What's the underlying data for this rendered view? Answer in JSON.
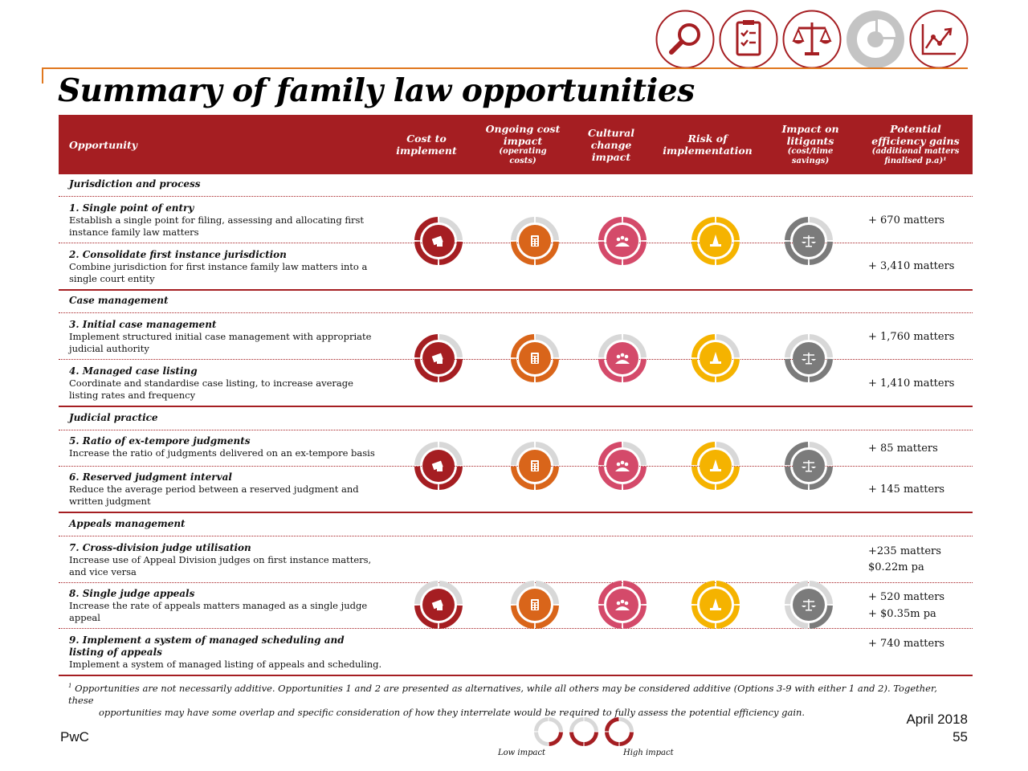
{
  "title": "Summary of family law opportunities",
  "nav_icons": [
    {
      "icon": "magnifier-icon",
      "color": "#a51e22",
      "filled": false
    },
    {
      "icon": "clipboard-icon",
      "color": "#a51e22",
      "filled": false
    },
    {
      "icon": "scales-icon",
      "color": "#a51e22",
      "filled": false
    },
    {
      "icon": "pie-chart-icon",
      "color": "#c4c4c4",
      "filled": true
    },
    {
      "icon": "line-chart-icon",
      "color": "#a51e22",
      "filled": false
    }
  ],
  "columns": {
    "opportunity": "Opportunity",
    "cost": [
      "Cost to",
      "implement"
    ],
    "ongoing": [
      "Ongoing cost",
      "impact"
    ],
    "ongoing_sub": [
      "(operating",
      "costs)"
    ],
    "cultural": [
      "Cultural",
      "change",
      "impact"
    ],
    "risk": [
      "Risk of",
      "implementation"
    ],
    "litigants": [
      "Impact on",
      "litigants"
    ],
    "litigants_sub": [
      "(cost/time",
      "savings)"
    ],
    "gains": [
      "Potential",
      "efficiency gains"
    ],
    "gains_sub": [
      "(additional matters",
      "finalised p.a)¹"
    ]
  },
  "colors": {
    "header": "#a51e22",
    "cost": "#a51e22",
    "ongoing": "#d9651a",
    "cultural": "#d44a6a",
    "risk": "#f5b300",
    "litigants": "#7b7b7b",
    "ring_empty": "#d8d8d8"
  },
  "sections": [
    {
      "label": "Jurisdiction and process",
      "ratings": {
        "cost": 3,
        "ongoing": 2,
        "cultural": 4,
        "risk": 4,
        "litigants": 3
      },
      "items": [
        {
          "title": "1. Single point of entry",
          "desc": "Establish a single point for filing, assessing and allocating first instance family law matters",
          "gains": [
            "+ 670 matters"
          ]
        },
        {
          "title": "2. Consolidate first instance jurisdiction",
          "desc": "Combine jurisdiction for first instance family law matters into a single court entity",
          "gains": [
            "+ 3,410 matters"
          ]
        }
      ]
    },
    {
      "label": "Case management",
      "ratings": {
        "cost": 3,
        "ongoing": 3,
        "cultural": 2,
        "risk": 3,
        "litigants": 2
      },
      "items": [
        {
          "title": "3. Initial case management",
          "desc": "Implement structured initial case management with appropriate judicial authority",
          "gains": [
            "+ 1,760 matters"
          ]
        },
        {
          "title": "4. Managed case listing",
          "desc": "Coordinate and standardise case listing, to increase average listing rates and frequency",
          "gains": [
            "+ 1,410 matters"
          ]
        }
      ]
    },
    {
      "label": "Judicial practice",
      "ratings": {
        "cost": 2,
        "ongoing": 2,
        "cultural": 3,
        "risk": 3,
        "litigants": 3
      },
      "items": [
        {
          "title": "5. Ratio of ex-tempore judgments",
          "desc": "Increase the ratio of judgments delivered on an ex-tempore basis",
          "gains": [
            "+ 85 matters"
          ]
        },
        {
          "title": "6. Reserved judgment interval",
          "desc": "Reduce the average period between a reserved judgment and written judgment",
          "gains": [
            "+ 145 matters"
          ]
        }
      ]
    },
    {
      "label": "Appeals management",
      "ratings": {
        "cost": 2,
        "ongoing": 2,
        "cultural": 4,
        "risk": 4,
        "litigants": 1
      },
      "items": [
        {
          "title": "7. Cross-division judge utilisation",
          "desc": "Increase use of Appeal Division judges on first instance matters, and vice versa",
          "gains": [
            "+235 matters",
            "$0.22m pa"
          ]
        },
        {
          "title": "8. Single judge appeals",
          "desc": "Increase the rate of appeals matters managed as a single judge appeal",
          "gains": [
            "+ 520 matters",
            "+ $0.35m pa"
          ]
        },
        {
          "title": "9.   Implement a system of managed scheduling and listing of appeals",
          "desc": "Implement a system of managed listing of appeals and scheduling.",
          "gains": [
            "+ 740 matters"
          ]
        }
      ]
    }
  ],
  "rating_scale_max": 4,
  "footnote": {
    "marker": "1",
    "line1": "Opportunities are not necessarily additive. Opportunities 1 and 2 are presented as alternatives, while all others may be considered additive (Options 3-9 with either 1 and 2). Together, these",
    "line2": "opportunities may have some overlap and specific consideration of how they interrelate would be required to fully assess the potential efficiency gain."
  },
  "legend": {
    "low": "Low impact",
    "high": "High impact",
    "levels": [
      1,
      2,
      3
    ]
  },
  "footer": {
    "brand": "PwC",
    "date": "April 2018",
    "page": "55"
  }
}
